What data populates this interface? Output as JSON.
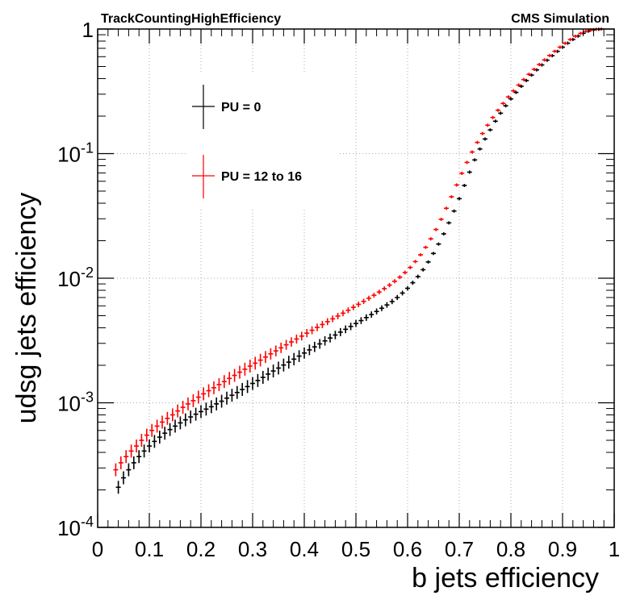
{
  "chart_data": {
    "type": "scatter",
    "title_left": "TrackCountingHighEfficiency",
    "title_right": "CMS Simulation",
    "xlabel": "b jets efficiency",
    "ylabel": "udsg jets efficiency",
    "xlim": [
      0,
      1
    ],
    "ylim": [
      0.0001,
      1
    ],
    "yscale": "log",
    "grid": true,
    "legend_position": "top-left",
    "x_tick_labels": [
      "0",
      "0.1",
      "0.2",
      "0.3",
      "0.4",
      "0.5",
      "0.6",
      "0.7",
      "0.8",
      "0.9",
      "1"
    ],
    "y_ticks": [
      {
        "base": "10",
        "exp": "-4"
      },
      {
        "base": "10",
        "exp": "-3"
      },
      {
        "base": "10",
        "exp": "-2"
      },
      {
        "base": "10",
        "exp": "-1"
      },
      {
        "base": "1",
        "exp": ""
      }
    ],
    "series": [
      {
        "name": "PU = 0",
        "color": "#000000",
        "x": [
          0.04,
          0.05,
          0.06,
          0.07,
          0.08,
          0.09,
          0.1,
          0.11,
          0.12,
          0.13,
          0.14,
          0.15,
          0.16,
          0.17,
          0.18,
          0.19,
          0.2,
          0.21,
          0.22,
          0.23,
          0.24,
          0.25,
          0.26,
          0.27,
          0.28,
          0.29,
          0.3,
          0.31,
          0.32,
          0.33,
          0.34,
          0.35,
          0.36,
          0.37,
          0.38,
          0.39,
          0.4,
          0.41,
          0.42,
          0.43,
          0.44,
          0.45,
          0.46,
          0.47,
          0.48,
          0.49,
          0.5,
          0.51,
          0.52,
          0.53,
          0.54,
          0.55,
          0.56,
          0.57,
          0.58,
          0.59,
          0.6,
          0.61,
          0.62,
          0.63,
          0.64,
          0.65,
          0.66,
          0.67,
          0.68,
          0.69,
          0.7,
          0.71,
          0.72,
          0.73,
          0.74,
          0.75,
          0.76,
          0.77,
          0.78,
          0.79,
          0.8,
          0.81,
          0.82,
          0.83,
          0.84,
          0.85,
          0.86,
          0.87,
          0.88,
          0.89,
          0.9,
          0.91,
          0.92,
          0.93,
          0.94,
          0.95,
          0.96,
          0.97
        ],
        "y": [
          0.00021,
          0.00025,
          0.00029,
          0.00033,
          0.00037,
          0.00041,
          0.00045,
          0.00049,
          0.00053,
          0.00057,
          0.00061,
          0.00065,
          0.00069,
          0.00073,
          0.00077,
          0.00081,
          0.00085,
          0.00089,
          0.00093,
          0.00098,
          0.00103,
          0.00109,
          0.00115,
          0.00121,
          0.00128,
          0.00135,
          0.00143,
          0.00151,
          0.0016,
          0.0017,
          0.0018,
          0.0019,
          0.00201,
          0.00212,
          0.00224,
          0.00237,
          0.00251,
          0.00266,
          0.00281,
          0.00297,
          0.00314,
          0.00331,
          0.0035,
          0.00369,
          0.00389,
          0.0041,
          0.00433,
          0.00457,
          0.00483,
          0.00511,
          0.00541,
          0.00574,
          0.0061,
          0.0065,
          0.007,
          0.0076,
          0.0083,
          0.0092,
          0.0103,
          0.0117,
          0.0135,
          0.0158,
          0.0188,
          0.0227,
          0.0278,
          0.0346,
          0.0435,
          0.0555,
          0.071,
          0.089,
          0.109,
          0.131,
          0.155,
          0.182,
          0.211,
          0.242,
          0.275,
          0.31,
          0.347,
          0.386,
          0.427,
          0.47,
          0.515,
          0.562,
          0.611,
          0.662,
          0.715,
          0.77,
          0.825,
          0.878,
          0.925,
          0.962,
          0.985,
          0.995
        ]
      },
      {
        "name": "PU = 12 to 16",
        "color": "#ff0000",
        "x": [
          0.035,
          0.045,
          0.055,
          0.065,
          0.075,
          0.085,
          0.095,
          0.105,
          0.115,
          0.125,
          0.135,
          0.145,
          0.155,
          0.165,
          0.175,
          0.185,
          0.195,
          0.205,
          0.215,
          0.225,
          0.235,
          0.245,
          0.255,
          0.265,
          0.275,
          0.285,
          0.295,
          0.305,
          0.315,
          0.325,
          0.335,
          0.345,
          0.355,
          0.365,
          0.375,
          0.385,
          0.395,
          0.405,
          0.415,
          0.425,
          0.435,
          0.445,
          0.455,
          0.465,
          0.475,
          0.485,
          0.495,
          0.505,
          0.515,
          0.525,
          0.535,
          0.545,
          0.555,
          0.565,
          0.575,
          0.585,
          0.595,
          0.605,
          0.615,
          0.625,
          0.635,
          0.645,
          0.655,
          0.665,
          0.675,
          0.685,
          0.695,
          0.705,
          0.715,
          0.725,
          0.735,
          0.745,
          0.755,
          0.765,
          0.775,
          0.785,
          0.795,
          0.805,
          0.815,
          0.825,
          0.835,
          0.845,
          0.855,
          0.865,
          0.875,
          0.885,
          0.895,
          0.905,
          0.915,
          0.925,
          0.935,
          0.945,
          0.955,
          0.965,
          0.975
        ],
        "y": [
          0.00029,
          0.00033,
          0.00037,
          0.00041,
          0.00045,
          0.0005,
          0.00055,
          0.0006,
          0.00065,
          0.0007,
          0.00075,
          0.0008,
          0.00086,
          0.00092,
          0.00098,
          0.00104,
          0.00111,
          0.00118,
          0.00125,
          0.00132,
          0.0014,
          0.00148,
          0.00157,
          0.00166,
          0.00176,
          0.00186,
          0.00197,
          0.00208,
          0.0022,
          0.00233,
          0.00247,
          0.00261,
          0.00276,
          0.00292,
          0.00308,
          0.00325,
          0.00343,
          0.00362,
          0.00382,
          0.00403,
          0.00425,
          0.00448,
          0.00472,
          0.00497,
          0.00524,
          0.00553,
          0.00584,
          0.00617,
          0.00652,
          0.0069,
          0.0073,
          0.00775,
          0.00825,
          0.0088,
          0.00945,
          0.0102,
          0.0111,
          0.0122,
          0.0136,
          0.0154,
          0.0177,
          0.0207,
          0.0246,
          0.0297,
          0.0364,
          0.045,
          0.056,
          0.0695,
          0.085,
          0.103,
          0.123,
          0.145,
          0.169,
          0.195,
          0.223,
          0.253,
          0.285,
          0.319,
          0.355,
          0.393,
          0.433,
          0.475,
          0.519,
          0.565,
          0.613,
          0.663,
          0.715,
          0.769,
          0.823,
          0.875,
          0.922,
          0.959,
          0.983,
          0.995,
          0.999
        ]
      }
    ]
  }
}
